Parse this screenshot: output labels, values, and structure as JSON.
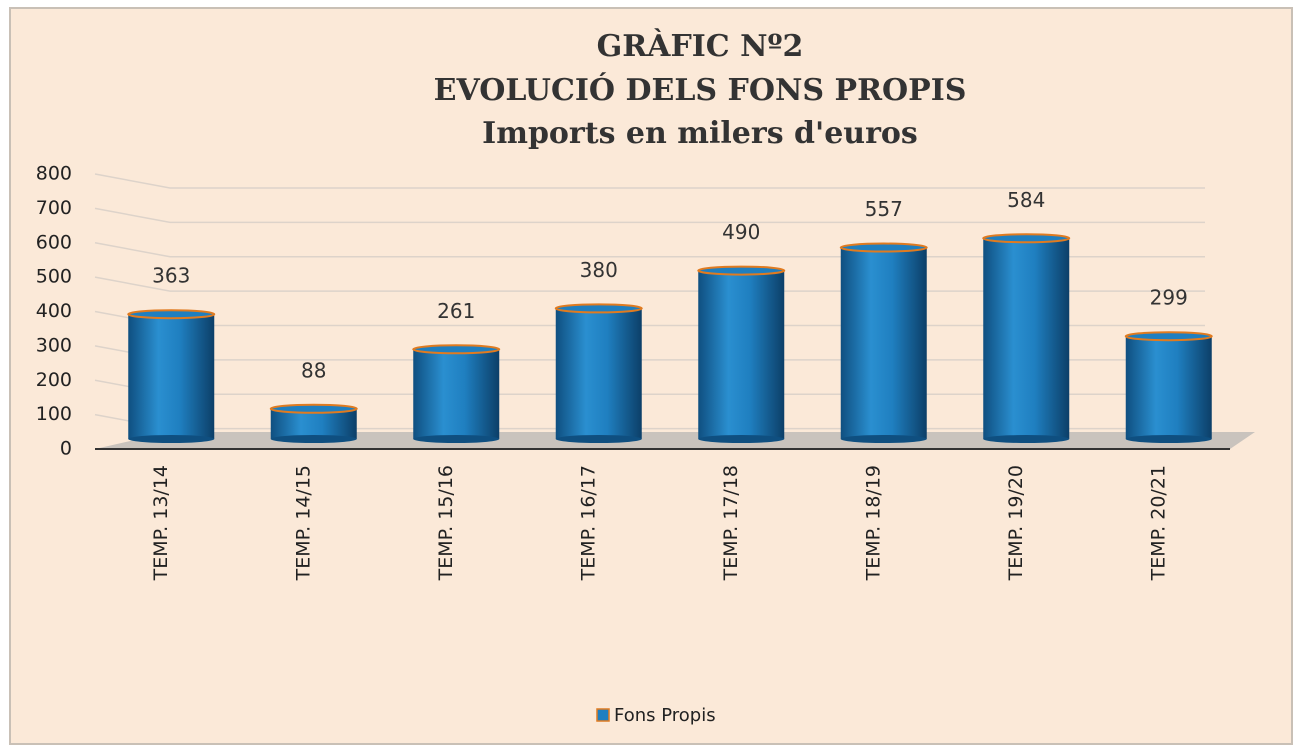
{
  "chart_data": {
    "type": "bar",
    "title": [
      "GRÀFIC Nº2",
      "EVOLUCIÓ DELS FONS PROPIS",
      "Imports en milers d'euros"
    ],
    "categories": [
      "TEMP. 13/14",
      "TEMP. 14/15",
      "TEMP. 15/16",
      "TEMP. 16/17",
      "TEMP. 17/18",
      "TEMP. 18/19",
      "TEMP. 19/20",
      "TEMP. 20/21"
    ],
    "series": [
      {
        "name": "Fons Propis",
        "color": "#1f7fc0",
        "values": [
          363,
          88,
          261,
          380,
          490,
          557,
          584,
          299
        ]
      }
    ],
    "ylim": [
      0,
      800
    ],
    "yticks": [
      0,
      100,
      200,
      300,
      400,
      500,
      600,
      700,
      800
    ],
    "grid": true,
    "legend": "bottom"
  }
}
